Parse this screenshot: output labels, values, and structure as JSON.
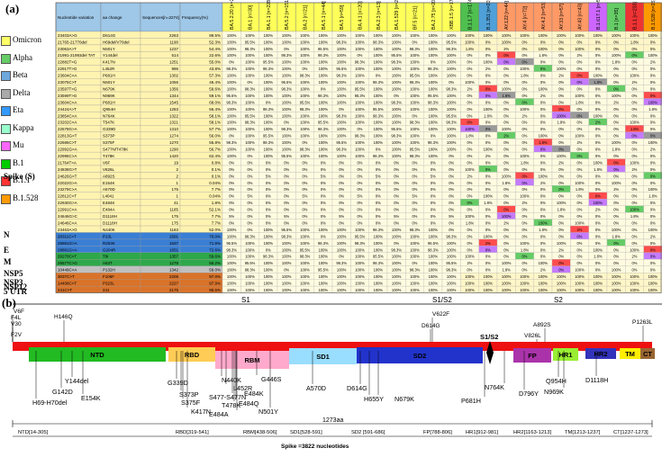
{
  "panel_a_label": "(a)",
  "panel_b_label": "(b)",
  "table": {
    "headers": [
      "Nucleotide variation",
      "aa change",
      "Sequences[n=2274]",
      "Frequency(%)"
    ],
    "lineage_headers": [
      "BA.5.2.20 [n=20]",
      "BA.1 [n=30]",
      "BA.1.1 [n=228]",
      "BA.5.2 [n=151]",
      "BA.2 [n=21]",
      "BA.5.1 [n=44]",
      "BA.5 [n=59]",
      "BA.4.1 [n=20]",
      "BA.2.3 [n=13]",
      "BA.1.529 [n=22]",
      "BF.5 [n=21]",
      "BA.2.75 [n=20]",
      "XBB.1.5 [n=17]",
      "B.1.1.7 [n=174]",
      "B.1.351 [n=20]",
      "AY.122 [n=44]",
      "AY.4 [n=72]",
      "AY.4.2 [n=53]",
      "AY.33 [n=57]",
      "AY.43 [n=43]",
      "B.1.617.1 [n=5]",
      "B.1 [n=35]",
      "B.1.1 [n=233]",
      "B.1.528 [n=25]"
    ],
    "lineage_colors": [
      "#ffff5a",
      "#ffff5a",
      "#ffff5a",
      "#ffff5a",
      "#ffff5a",
      "#ffff5a",
      "#ffff5a",
      "#ffff5a",
      "#ffff5a",
      "#ffff5a",
      "#ffff5a",
      "#ffff5a",
      "#ffff5a",
      "#4fbf4f",
      "#4fa0d8",
      "#ff9966",
      "#ff9966",
      "#ff9966",
      "#ff9966",
      "#ff9966",
      "#cc66ff",
      "#66cc66",
      "#ee3333",
      "#ff9900"
    ],
    "legend": [
      {
        "name": "Omicron",
        "color": "#ffff66"
      },
      {
        "name": "Alpha",
        "color": "#66cc66"
      },
      {
        "name": "Beta",
        "color": "#6fa8dc"
      },
      {
        "name": "Delta",
        "color": "#aaaaaa"
      },
      {
        "name": "Eta",
        "color": "#3399ff"
      },
      {
        "name": "Kappa",
        "color": "#99ffcc"
      },
      {
        "name": "Mu",
        "color": "#ff66ff"
      },
      {
        "name": "B.1",
        "color": "#00cc00"
      },
      {
        "name": "B.1.1",
        "color": "#ff3333"
      },
      {
        "name": "B.1.528",
        "color": "#ff9900"
      }
    ],
    "region_labels": [
      {
        "name": "Spike (S)"
      },
      {
        "name": "N"
      },
      {
        "name": "E"
      },
      {
        "name": "M"
      },
      {
        "name": "NSP5"
      },
      {
        "name": "NSP3"
      },
      {
        "name": "NSP12"
      },
      {
        "name": "5'UTR"
      }
    ],
    "rows": [
      [
        "23403A>G",
        "D614G",
        "2263",
        "99.5%"
      ],
      [
        "21765-21770del",
        "H69del/V70del",
        "1190",
        "52.3%"
      ],
      [
        "23063A>T",
        "N501Y",
        "1237",
        "54.4%"
      ],
      [
        "21991-21993del TAT",
        "Y144del",
        "514",
        "22.6%"
      ],
      [
        "22882T>G",
        "K417N",
        "1251",
        "55.0%"
      ],
      [
        "22917T>G",
        "L452R",
        "996",
        "43.8%"
      ],
      [
        "23604C>A",
        "P681H",
        "1302",
        "57.3%"
      ],
      [
        "23075C>T",
        "N501Y",
        "1056",
        "46.4%"
      ],
      [
        "23597T>G",
        "N679K",
        "1356",
        "59.6%"
      ],
      [
        "23599T>G",
        "N969K",
        "1344",
        "59.1%"
      ],
      [
        "23604C>A",
        "P681H",
        "1545",
        "68.0%"
      ],
      [
        "24424A>T",
        "Q954H",
        "1283",
        "56.4%"
      ],
      [
        "23854C>A",
        "N764K",
        "1322",
        "58.1%"
      ],
      [
        "23202C>A",
        "T547K",
        "1321",
        "58.1%"
      ],
      [
        "22578G>A",
        "G339D",
        "1310",
        "57.7%"
      ],
      [
        "22813G>T",
        "S373P",
        "1274",
        "56.0%"
      ],
      [
        "22686C>T",
        "S375F",
        "1270",
        "55.8%"
      ],
      [
        "22992G>A",
        "S477N/T478K",
        "1290",
        "56.7%"
      ],
      [
        "22995C>A",
        "T478K",
        "1420",
        "62.4%"
      ],
      [
        "21764T>A",
        "V6F",
        "19",
        "0.8%"
      ],
      [
        "24838G>T",
        "V826L",
        "2",
        "0.1%"
      ],
      [
        "24626G>T",
        "A892S",
        "2",
        "0.1%"
      ],
      [
        "22022G>A",
        "E154K",
        "1",
        "0.04%"
      ],
      [
        "23279C>A",
        "A570D",
        "175",
        "7.7%"
      ],
      [
        "22812C>T",
        "L4041",
        "1",
        "0.04%"
      ],
      [
        "22930G>A",
        "E484K",
        "41",
        "1.8%"
      ],
      [
        "22991C>A",
        "E484A",
        "1185",
        "52.1%"
      ],
      [
        "24646G>C",
        "D1118H",
        "175",
        "7.7%"
      ],
      [
        "24646C>A",
        "D1118H",
        "175",
        "7.7%"
      ],
      [
        "23463A>G",
        "N440K",
        "1183",
        "52.0%"
      ],
      [
        "28311C>T",
        "P13L",
        "1591",
        "70.0%"
      ],
      [
        "28881G>A",
        "R203K",
        "1637",
        "71.9%"
      ],
      [
        "28881G>A",
        "G204R",
        "1651",
        "72.6%"
      ],
      [
        "26270C>T",
        "T9I",
        "1357",
        "59.6%"
      ],
      [
        "26577C>G",
        "A63T",
        "1279",
        "56.2%"
      ],
      [
        "10449C>A",
        "P132H",
        "1342",
        "59.0%"
      ],
      [
        "3037C>T",
        "F106F",
        "2206",
        "97.0%"
      ],
      [
        "14408C>T",
        "P323L",
        "2227",
        "97.9%"
      ],
      [
        "241C>T",
        "241",
        "2175",
        "95.6%"
      ]
    ]
  },
  "diagram": {
    "domains": [
      {
        "name": "NTD",
        "color": "#22bb22"
      },
      {
        "name": "RBD",
        "color": "#ffcc55"
      },
      {
        "name": "RBM",
        "color": "#ffaacc"
      },
      {
        "name": "SD1",
        "color": "#99ddff"
      },
      {
        "name": "SD2",
        "color": "#2233cc"
      },
      {
        "name": "FP",
        "color": "#aa33aa"
      },
      {
        "name": "HR1",
        "color": "#99ee33"
      },
      {
        "name": "HR2",
        "color": "#3333bb"
      },
      {
        "name": "TM",
        "color": "#ffee00"
      },
      {
        "name": "CT",
        "color": "#996633"
      }
    ],
    "labels": {
      "s1": "S1",
      "s1s2_top": "S1/S2",
      "s2": "S2",
      "s1s2_mid": "S1/S2",
      "length": "1273aa",
      "footer": "Spike =3822 nucleotides"
    },
    "mutations_above": [
      "V6F",
      "F4L",
      "V30",
      "F2V",
      "H146Q",
      "V622F",
      "D614G",
      "A892S",
      "V826L",
      "P1263L"
    ],
    "mutations_below": [
      "H69-H70del",
      "G142D",
      "Y144del",
      "E154K",
      "G339D",
      "S373P",
      "S375F",
      "K417N",
      "N440K",
      "L452R",
      "S477-S477N",
      "T478K",
      "E484A",
      "E484K",
      "E484Q",
      "G446S",
      "N501Y",
      "A570D",
      "D614G",
      "H655Y",
      "N679K",
      "N764K",
      "P681H",
      "D796Y",
      "Q954H",
      "N969K",
      "D1118H"
    ],
    "domain_ranges": [
      "NTD[14-305]",
      "RBD[319-541]",
      "RBM[438-506]",
      "SD1[528-591]",
      "SD2 [591-686]",
      "FP[788-806]",
      "HR1[912-981]",
      "HR2[1163-1213]",
      "TM[1213-1237]",
      "CT[1237-1273]"
    ]
  }
}
